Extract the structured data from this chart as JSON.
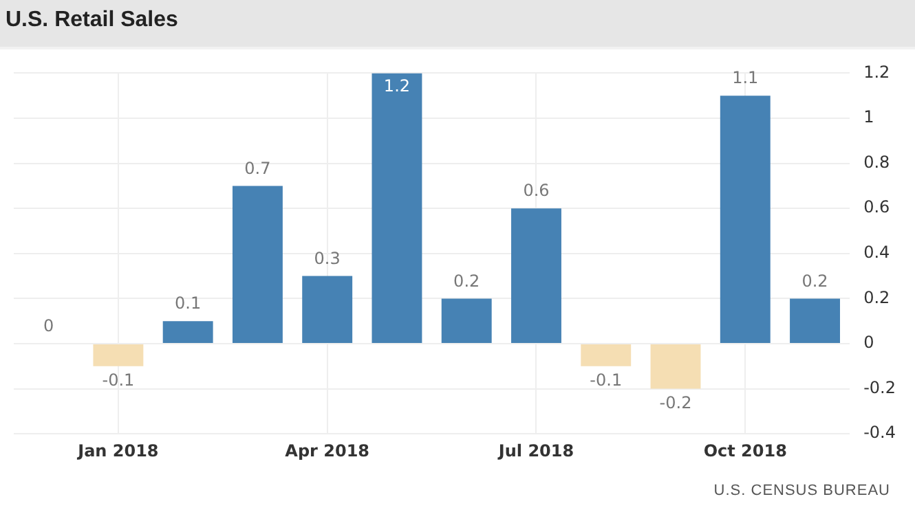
{
  "chart_data": {
    "type": "bar",
    "title": "U.S. Retail Sales",
    "categories": [
      null,
      "Jan 2018",
      null,
      null,
      "Apr 2018",
      null,
      null,
      "Jul 2018",
      null,
      null,
      "Oct 2018",
      null
    ],
    "values": [
      0,
      -0.1,
      0.1,
      0.7,
      0.3,
      1.2,
      0.2,
      0.6,
      -0.1,
      -0.2,
      1.1,
      0.2
    ],
    "colors": [
      "#4682b4",
      "#f5deb3",
      "#4682b4",
      "#4682b4",
      "#4682b4",
      "#4682b4",
      "#4682b4",
      "#4682b4",
      "#f5deb3",
      "#f5deb3",
      "#4682b4",
      "#4682b4"
    ],
    "ylim": [
      -0.4,
      1.2
    ],
    "yticks": [
      -0.4,
      -0.2,
      0,
      0.2,
      0.4,
      0.6,
      0.8,
      1,
      1.2
    ],
    "grid": true,
    "legend": false,
    "data_labels": true,
    "annotations": [
      "U.S. CENSUS BUREAU"
    ]
  }
}
